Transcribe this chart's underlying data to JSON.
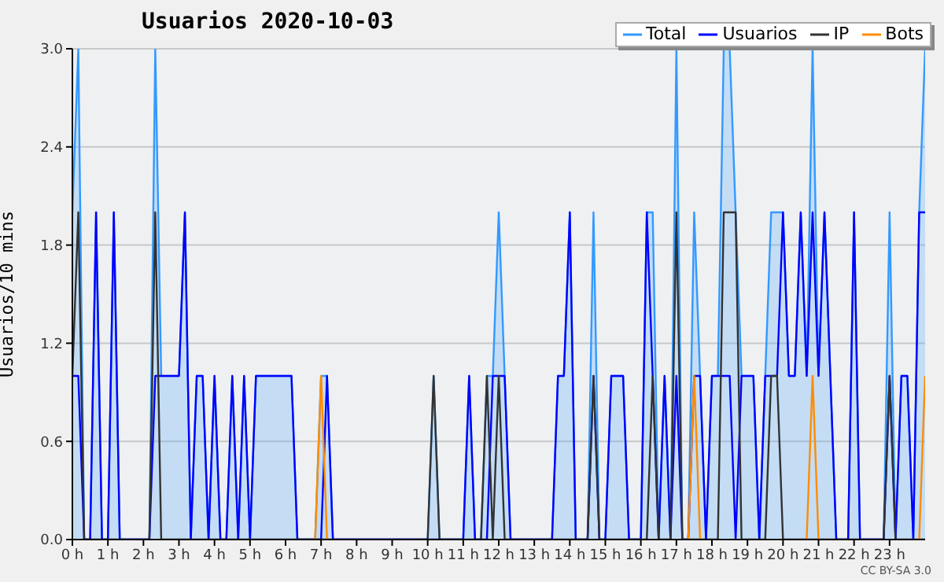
{
  "chart_data": {
    "type": "line",
    "title": "Usuarios  2020-10-03",
    "ylabel": "Usuarios/10 mins",
    "annotations": [
      "CC BY-SA 3.0"
    ],
    "x": [
      0,
      0.167,
      0.333,
      0.5,
      0.667,
      0.833,
      1,
      1.167,
      1.333,
      1.5,
      1.667,
      1.833,
      2,
      2.167,
      2.333,
      2.5,
      2.667,
      2.833,
      3,
      3.167,
      3.333,
      3.5,
      3.667,
      3.833,
      4,
      4.167,
      4.333,
      4.5,
      4.667,
      4.833,
      5,
      5.167,
      5.333,
      5.5,
      5.667,
      5.833,
      6,
      6.167,
      6.333,
      6.5,
      6.667,
      6.833,
      7,
      7.167,
      7.333,
      7.5,
      7.667,
      7.833,
      8,
      8.167,
      8.333,
      8.5,
      8.667,
      8.833,
      9,
      9.167,
      9.333,
      9.5,
      9.667,
      9.833,
      10,
      10.167,
      10.333,
      10.5,
      10.667,
      10.833,
      11,
      11.167,
      11.333,
      11.5,
      11.667,
      11.833,
      12,
      12.167,
      12.333,
      12.5,
      12.667,
      12.833,
      13,
      13.167,
      13.333,
      13.5,
      13.667,
      13.833,
      14,
      14.167,
      14.333,
      14.5,
      14.667,
      14.833,
      15,
      15.167,
      15.333,
      15.5,
      15.667,
      15.833,
      16,
      16.167,
      16.333,
      16.5,
      16.667,
      16.833,
      17,
      17.167,
      17.333,
      17.5,
      17.667,
      17.833,
      18,
      18.167,
      18.333,
      18.5,
      18.667,
      18.833,
      19,
      19.167,
      19.333,
      19.5,
      19.667,
      19.833,
      20,
      20.167,
      20.333,
      20.5,
      20.667,
      20.833,
      21,
      21.167,
      21.333,
      21.5,
      21.667,
      21.833,
      22,
      22.167,
      22.333,
      22.5,
      22.667,
      22.833,
      23,
      23.167,
      23.333,
      23.5,
      23.667,
      23.833,
      24
    ],
    "series": [
      {
        "name": "Total",
        "type": "area",
        "color": "#3399ff",
        "values": [
          2,
          3,
          0,
          0,
          2,
          0,
          0,
          2,
          0,
          0,
          0,
          0,
          0,
          0,
          3,
          1,
          1,
          1,
          1,
          2,
          0,
          1,
          1,
          0,
          1,
          0,
          0,
          1,
          0,
          1,
          0,
          1,
          1,
          1,
          1,
          1,
          1,
          1,
          0,
          0,
          0,
          0,
          1,
          1,
          0,
          0,
          0,
          0,
          0,
          0,
          0,
          0,
          0,
          0,
          0,
          0,
          0,
          0,
          0,
          0,
          0,
          1,
          0,
          0,
          0,
          0,
          0,
          1,
          0,
          0,
          1,
          1,
          2,
          1,
          0,
          0,
          0,
          0,
          0,
          0,
          0,
          0,
          1,
          1,
          2,
          0,
          0,
          0,
          2,
          0,
          0,
          1,
          1,
          1,
          0,
          0,
          0,
          2,
          2,
          0,
          1,
          0,
          3,
          0,
          0,
          2,
          1,
          0,
          1,
          1,
          3,
          3,
          2,
          1,
          1,
          1,
          0,
          1,
          2,
          2,
          2,
          1,
          1,
          2,
          1,
          3,
          1,
          2,
          1,
          0,
          0,
          0,
          2,
          0,
          0,
          0,
          0,
          0,
          2,
          0,
          1,
          1,
          0,
          2,
          3
        ]
      },
      {
        "name": "Usuarios",
        "color": "#0000ff",
        "values": [
          1,
          1,
          0,
          0,
          2,
          0,
          0,
          2,
          0,
          0,
          0,
          0,
          0,
          0,
          1,
          1,
          1,
          1,
          1,
          2,
          0,
          1,
          1,
          0,
          1,
          0,
          0,
          1,
          0,
          1,
          0,
          1,
          1,
          1,
          1,
          1,
          1,
          1,
          0,
          0,
          0,
          0,
          0,
          1,
          0,
          0,
          0,
          0,
          0,
          0,
          0,
          0,
          0,
          0,
          0,
          0,
          0,
          0,
          0,
          0,
          0,
          0,
          0,
          0,
          0,
          0,
          0,
          1,
          0,
          0,
          0,
          1,
          1,
          1,
          0,
          0,
          0,
          0,
          0,
          0,
          0,
          0,
          1,
          1,
          2,
          0,
          0,
          0,
          1,
          0,
          0,
          1,
          1,
          1,
          0,
          0,
          0,
          2,
          1,
          0,
          1,
          0,
          1,
          0,
          0,
          1,
          1,
          0,
          1,
          1,
          1,
          1,
          0,
          1,
          1,
          1,
          0,
          1,
          1,
          1,
          2,
          1,
          1,
          2,
          1,
          2,
          1,
          2,
          1,
          0,
          0,
          0,
          2,
          0,
          0,
          0,
          0,
          0,
          1,
          0,
          1,
          1,
          0,
          2,
          2
        ]
      },
      {
        "name": "IP",
        "color": "#333333",
        "values": [
          1,
          2,
          0,
          0,
          0,
          0,
          0,
          0,
          0,
          0,
          0,
          0,
          0,
          0,
          2,
          0,
          0,
          0,
          0,
          0,
          0,
          0,
          0,
          0,
          0,
          0,
          0,
          0,
          0,
          0,
          0,
          0,
          0,
          0,
          0,
          0,
          0,
          0,
          0,
          0,
          0,
          0,
          0,
          0,
          0,
          0,
          0,
          0,
          0,
          0,
          0,
          0,
          0,
          0,
          0,
          0,
          0,
          0,
          0,
          0,
          0,
          1,
          0,
          0,
          0,
          0,
          0,
          0,
          0,
          0,
          1,
          0,
          1,
          0,
          0,
          0,
          0,
          0,
          0,
          0,
          0,
          0,
          0,
          0,
          0,
          0,
          0,
          0,
          1,
          0,
          0,
          0,
          0,
          0,
          0,
          0,
          0,
          0,
          1,
          0,
          0,
          0,
          2,
          0,
          0,
          0,
          0,
          0,
          0,
          0,
          2,
          2,
          2,
          0,
          0,
          0,
          0,
          0,
          1,
          1,
          0,
          0,
          0,
          0,
          0,
          0,
          0,
          0,
          0,
          0,
          0,
          0,
          0,
          0,
          0,
          0,
          0,
          0,
          1,
          0,
          0,
          0,
          0,
          0,
          0
        ]
      },
      {
        "name": "Bots",
        "color": "#ff8c00",
        "values": [
          null,
          null,
          null,
          null,
          null,
          null,
          null,
          null,
          null,
          null,
          null,
          null,
          null,
          null,
          null,
          null,
          null,
          null,
          null,
          null,
          null,
          null,
          null,
          null,
          null,
          null,
          null,
          null,
          null,
          null,
          null,
          null,
          null,
          null,
          null,
          null,
          null,
          null,
          null,
          null,
          null,
          0,
          1,
          0,
          null,
          null,
          null,
          null,
          null,
          null,
          null,
          null,
          null,
          null,
          null,
          null,
          null,
          null,
          null,
          null,
          null,
          null,
          null,
          null,
          null,
          null,
          null,
          null,
          null,
          null,
          null,
          null,
          null,
          null,
          null,
          null,
          null,
          null,
          null,
          null,
          null,
          null,
          null,
          null,
          null,
          null,
          null,
          null,
          null,
          null,
          null,
          null,
          null,
          null,
          null,
          null,
          null,
          null,
          null,
          null,
          null,
          null,
          null,
          null,
          0,
          1,
          0,
          null,
          null,
          null,
          null,
          null,
          null,
          null,
          null,
          null,
          null,
          null,
          null,
          null,
          null,
          null,
          null,
          null,
          0,
          1,
          0,
          null,
          null,
          null,
          null,
          null,
          null,
          null,
          null,
          null,
          null,
          null,
          null,
          null,
          null,
          null,
          null,
          0,
          1
        ]
      }
    ],
    "xlim": [
      0,
      24
    ],
    "xticks": [
      {
        "value": 0,
        "label": "0 h"
      },
      {
        "value": 1,
        "label": "1 h"
      },
      {
        "value": 2,
        "label": "2 h"
      },
      {
        "value": 3,
        "label": "3 h"
      },
      {
        "value": 4,
        "label": "4 h"
      },
      {
        "value": 5,
        "label": "5 h"
      },
      {
        "value": 6,
        "label": "6 h"
      },
      {
        "value": 7,
        "label": "7 h"
      },
      {
        "value": 8,
        "label": "8 h"
      },
      {
        "value": 9,
        "label": "9 h"
      },
      {
        "value": 10,
        "label": "10 h"
      },
      {
        "value": 11,
        "label": "11 h"
      },
      {
        "value": 12,
        "label": "12 h"
      },
      {
        "value": 13,
        "label": "13 h"
      },
      {
        "value": 14,
        "label": "14 h"
      },
      {
        "value": 15,
        "label": "15 h"
      },
      {
        "value": 16,
        "label": "16 h"
      },
      {
        "value": 17,
        "label": "17 h"
      },
      {
        "value": 18,
        "label": "18 h"
      },
      {
        "value": 19,
        "label": "19 h"
      },
      {
        "value": 20,
        "label": "20 h"
      },
      {
        "value": 21,
        "label": "21 h"
      },
      {
        "value": 22,
        "label": "22 h"
      },
      {
        "value": 23,
        "label": "23 h"
      }
    ],
    "ylim": [
      0,
      3
    ],
    "yticks": [
      {
        "value": 0,
        "label": "0.0"
      },
      {
        "value": 0.6,
        "label": "0.6"
      },
      {
        "value": 1.2,
        "label": "1.2"
      },
      {
        "value": 1.8,
        "label": "1.8"
      },
      {
        "value": 2.4,
        "label": "2.4"
      },
      {
        "value": 3,
        "label": "3.0"
      }
    ],
    "grid": "y",
    "legend": "top right",
    "marker": "none",
    "line_style": "solid"
  }
}
